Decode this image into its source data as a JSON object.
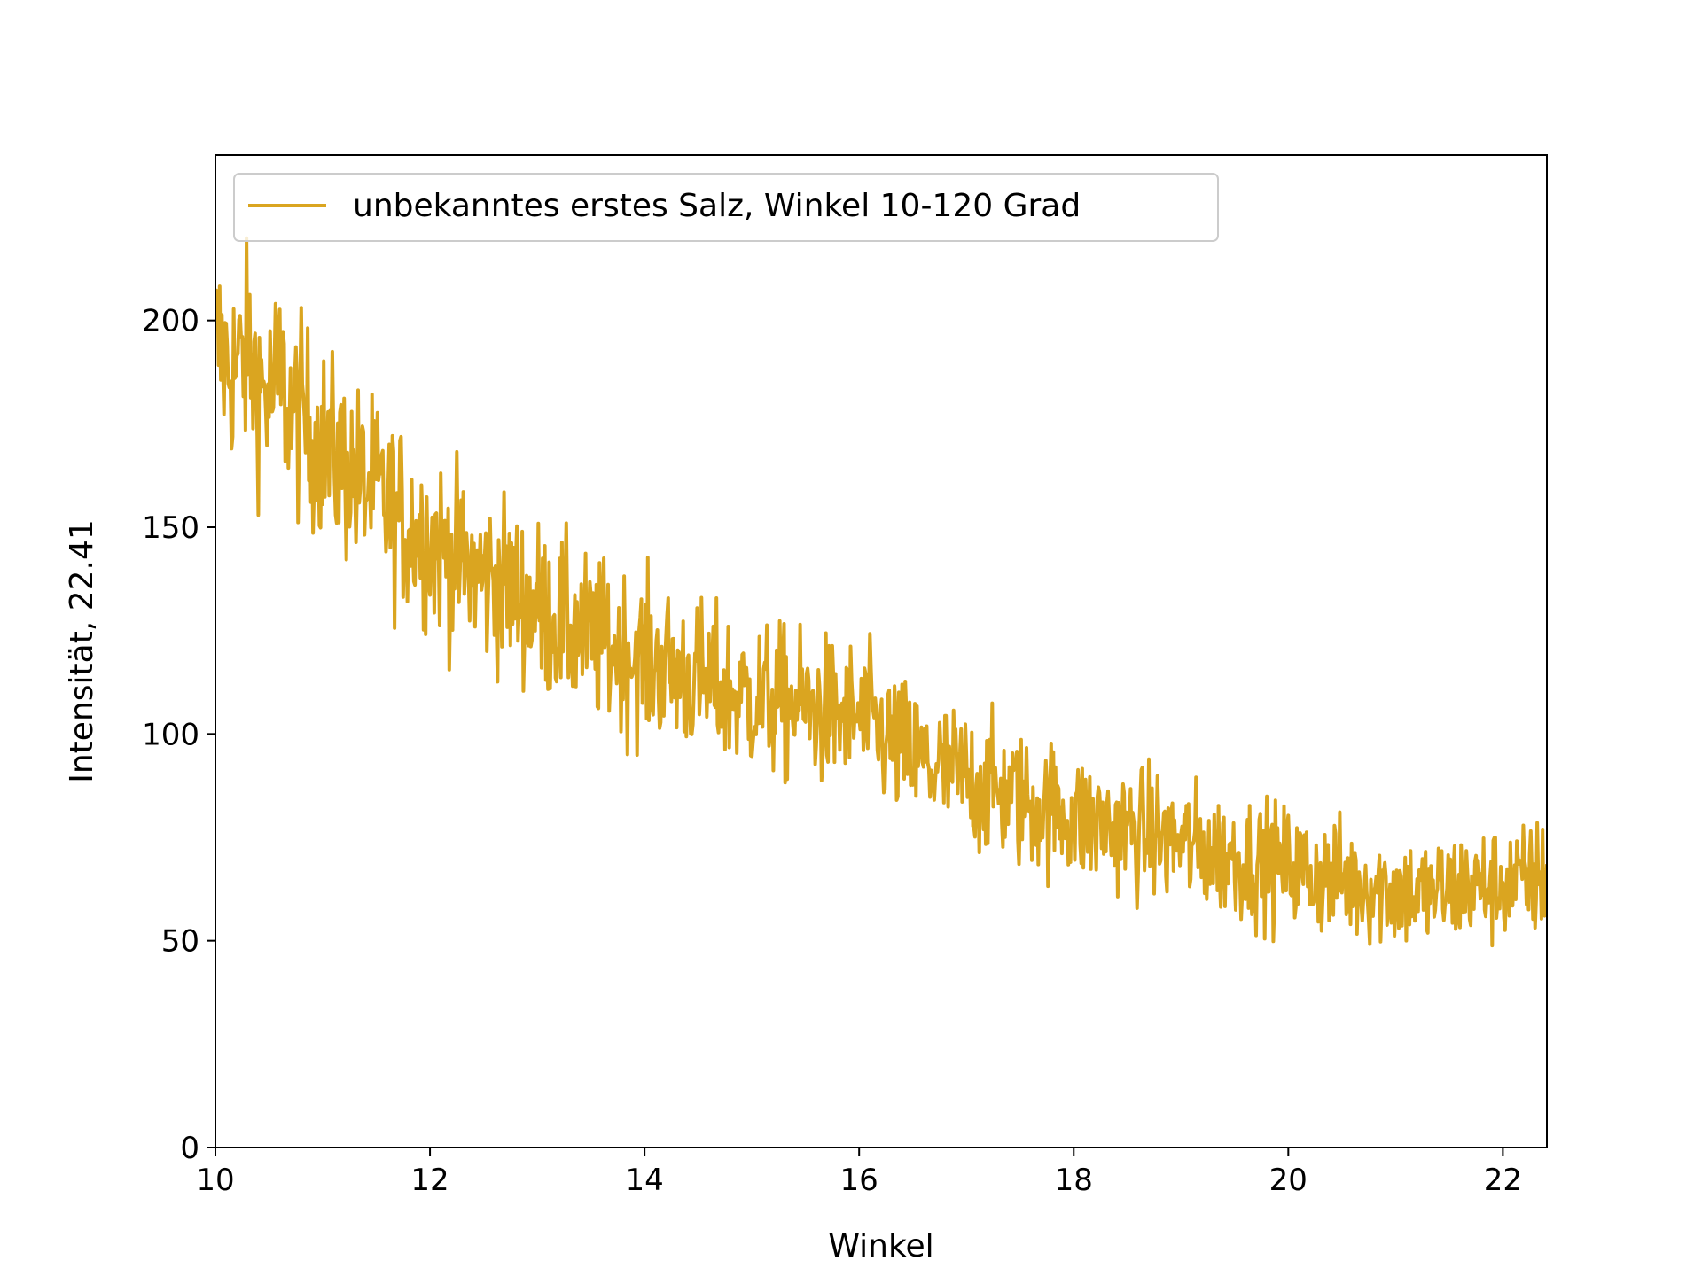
{
  "chart_data": {
    "type": "line",
    "xlabel": "Winkel",
    "ylabel": "Intensität, 22.41",
    "xlim": [
      10,
      22.41
    ],
    "ylim": [
      0,
      240
    ],
    "x_ticks": [
      10,
      12,
      14,
      16,
      18,
      20,
      22
    ],
    "y_ticks": [
      0,
      50,
      100,
      150,
      200
    ],
    "x_tick_labels": [
      "10",
      "12",
      "14",
      "16",
      "18",
      "20",
      "22"
    ],
    "y_tick_labels": [
      "0",
      "50",
      "100",
      "150",
      "200"
    ],
    "legend_position": "top-left",
    "grid": false,
    "series": [
      {
        "name": "unbekanntes erstes Salz, Winkel 10-120 Grad",
        "color": "#DAA520",
        "x": [
          10.0,
          10.1,
          10.2,
          10.3,
          10.4,
          10.5,
          10.6,
          10.7,
          10.8,
          10.9,
          11.0,
          11.1,
          11.2,
          11.3,
          11.4,
          11.5,
          11.6,
          11.7,
          11.8,
          11.9,
          12.0,
          12.1,
          12.2,
          12.3,
          12.4,
          12.5,
          12.6,
          12.7,
          12.8,
          12.9,
          13.0,
          13.1,
          13.2,
          13.3,
          13.4,
          13.5,
          13.6,
          13.7,
          13.8,
          13.9,
          14.0,
          14.1,
          14.2,
          14.3,
          14.4,
          14.5,
          14.6,
          14.7,
          14.8,
          14.9,
          15.0,
          15.1,
          15.2,
          15.3,
          15.4,
          15.5,
          15.6,
          15.7,
          15.8,
          15.9,
          16.0,
          16.1,
          16.2,
          16.3,
          16.4,
          16.5,
          16.6,
          16.7,
          16.8,
          16.9,
          17.0,
          17.1,
          17.2,
          17.3,
          17.4,
          17.5,
          17.6,
          17.7,
          17.8,
          17.9,
          18.0,
          18.1,
          18.2,
          18.3,
          18.4,
          18.5,
          18.6,
          18.7,
          18.8,
          18.9,
          19.0,
          19.1,
          19.2,
          19.3,
          19.4,
          19.5,
          19.6,
          19.7,
          19.8,
          19.9,
          20.0,
          20.1,
          20.2,
          20.3,
          20.4,
          20.5,
          20.6,
          20.7,
          20.8,
          20.9,
          21.0,
          21.1,
          21.2,
          21.3,
          21.4,
          21.5,
          21.6,
          21.7,
          21.8,
          21.9,
          22.0,
          22.1,
          22.2,
          22.3,
          22.4
        ],
        "y": [
          195,
          190,
          188,
          192,
          185,
          181,
          186,
          178,
          176,
          173,
          170,
          167,
          165,
          162,
          160,
          158,
          155,
          153,
          151,
          149,
          147,
          145,
          143,
          141,
          139,
          138,
          137,
          136,
          134,
          132,
          131,
          129,
          127,
          126,
          124,
          123,
          122,
          121,
          120,
          119,
          118,
          117,
          116,
          115,
          114,
          113,
          112,
          111,
          110,
          109,
          109,
          108,
          108,
          107,
          107,
          106,
          106,
          105,
          105,
          104,
          104,
          102,
          100,
          98,
          96,
          94,
          93,
          92,
          91,
          90,
          89,
          88,
          87,
          86,
          85,
          84,
          83,
          82,
          82,
          81,
          80,
          79,
          78,
          78,
          77,
          77,
          76,
          76,
          75,
          74,
          74,
          73,
          72,
          71,
          71,
          70,
          70,
          69,
          69,
          68,
          68,
          67,
          66,
          66,
          65,
          65,
          64,
          64,
          63,
          63,
          62,
          62,
          61,
          61,
          62,
          62,
          63,
          63,
          63,
          63,
          64,
          64,
          64,
          65,
          65
        ],
        "noise_amplitude": 13
      }
    ]
  }
}
